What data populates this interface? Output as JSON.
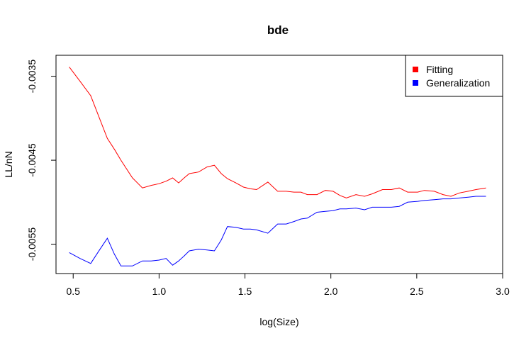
{
  "chart_data": {
    "type": "line",
    "title": "bde",
    "xlabel": "log(Size)",
    "ylabel": "LL/nN",
    "xlim": [
      0.4,
      3.0
    ],
    "ylim": [
      -0.00585,
      -0.00325
    ],
    "x_ticks": [
      {
        "value": 0.5,
        "label": "0.5"
      },
      {
        "value": 1.0,
        "label": "1.0"
      },
      {
        "value": 1.5,
        "label": "1.5"
      },
      {
        "value": 2.0,
        "label": "2.0"
      },
      {
        "value": 2.5,
        "label": "2.5"
      },
      {
        "value": 3.0,
        "label": "3.0"
      }
    ],
    "y_ticks": [
      {
        "value": -0.0035,
        "label": "-0.0035"
      },
      {
        "value": -0.0045,
        "label": "-0.0045"
      },
      {
        "value": -0.0055,
        "label": "-0.0055"
      }
    ],
    "legend_position": "top-right",
    "series": [
      {
        "name": "Fitting",
        "color": "#ff0000",
        "points": [
          [
            0.477,
            -0.00339
          ],
          [
            0.54,
            -0.00356
          ],
          [
            0.602,
            -0.00373
          ],
          [
            0.653,
            -0.004
          ],
          [
            0.699,
            -0.00424
          ],
          [
            0.74,
            -0.00437
          ],
          [
            0.778,
            -0.0045
          ],
          [
            0.845,
            -0.00471
          ],
          [
            0.903,
            -0.00483
          ],
          [
            0.954,
            -0.0048
          ],
          [
            1.0,
            -0.00478
          ],
          [
            1.041,
            -0.00475
          ],
          [
            1.079,
            -0.00471
          ],
          [
            1.114,
            -0.00477
          ],
          [
            1.146,
            -0.00471
          ],
          [
            1.176,
            -0.00466
          ],
          [
            1.23,
            -0.00464
          ],
          [
            1.279,
            -0.00458
          ],
          [
            1.322,
            -0.00456
          ],
          [
            1.362,
            -0.00466
          ],
          [
            1.398,
            -0.00472
          ],
          [
            1.447,
            -0.00477
          ],
          [
            1.491,
            -0.00482
          ],
          [
            1.531,
            -0.00484
          ],
          [
            1.568,
            -0.00485
          ],
          [
            1.633,
            -0.00476
          ],
          [
            1.69,
            -0.00487
          ],
          [
            1.74,
            -0.00487
          ],
          [
            1.785,
            -0.00488
          ],
          [
            1.826,
            -0.00488
          ],
          [
            1.863,
            -0.00491
          ],
          [
            1.919,
            -0.00491
          ],
          [
            1.968,
            -0.00486
          ],
          [
            2.013,
            -0.00487
          ],
          [
            2.053,
            -0.00492
          ],
          [
            2.09,
            -0.00495
          ],
          [
            2.146,
            -0.00491
          ],
          [
            2.196,
            -0.00493
          ],
          [
            2.241,
            -0.0049
          ],
          [
            2.301,
            -0.00485
          ],
          [
            2.352,
            -0.00485
          ],
          [
            2.398,
            -0.00483
          ],
          [
            2.447,
            -0.00488
          ],
          [
            2.505,
            -0.00488
          ],
          [
            2.544,
            -0.00486
          ],
          [
            2.602,
            -0.00487
          ],
          [
            2.653,
            -0.00491
          ],
          [
            2.699,
            -0.00493
          ],
          [
            2.748,
            -0.00489
          ],
          [
            2.799,
            -0.00487
          ],
          [
            2.845,
            -0.00485
          ],
          [
            2.903,
            -0.00483
          ]
        ]
      },
      {
        "name": "Generalization",
        "color": "#0000ff",
        "points": [
          [
            0.477,
            -0.0056
          ],
          [
            0.54,
            -0.00567
          ],
          [
            0.602,
            -0.00573
          ],
          [
            0.653,
            -0.00557
          ],
          [
            0.699,
            -0.00543
          ],
          [
            0.74,
            -0.00562
          ],
          [
            0.778,
            -0.00576
          ],
          [
            0.845,
            -0.00576
          ],
          [
            0.903,
            -0.0057
          ],
          [
            0.954,
            -0.0057
          ],
          [
            1.0,
            -0.00569
          ],
          [
            1.041,
            -0.00567
          ],
          [
            1.079,
            -0.00575
          ],
          [
            1.114,
            -0.0057
          ],
          [
            1.146,
            -0.00564
          ],
          [
            1.176,
            -0.00558
          ],
          [
            1.23,
            -0.00556
          ],
          [
            1.279,
            -0.00557
          ],
          [
            1.322,
            -0.00558
          ],
          [
            1.362,
            -0.00545
          ],
          [
            1.398,
            -0.00529
          ],
          [
            1.447,
            -0.0053
          ],
          [
            1.491,
            -0.00532
          ],
          [
            1.531,
            -0.00532
          ],
          [
            1.568,
            -0.00533
          ],
          [
            1.633,
            -0.00537
          ],
          [
            1.69,
            -0.00526
          ],
          [
            1.74,
            -0.00526
          ],
          [
            1.785,
            -0.00523
          ],
          [
            1.826,
            -0.0052
          ],
          [
            1.863,
            -0.00519
          ],
          [
            1.919,
            -0.00512
          ],
          [
            1.968,
            -0.00511
          ],
          [
            2.013,
            -0.0051
          ],
          [
            2.053,
            -0.00508
          ],
          [
            2.09,
            -0.00508
          ],
          [
            2.146,
            -0.00507
          ],
          [
            2.196,
            -0.00509
          ],
          [
            2.241,
            -0.00506
          ],
          [
            2.301,
            -0.00506
          ],
          [
            2.352,
            -0.00506
          ],
          [
            2.398,
            -0.00505
          ],
          [
            2.447,
            -0.005
          ],
          [
            2.505,
            -0.00499
          ],
          [
            2.544,
            -0.00498
          ],
          [
            2.602,
            -0.00497
          ],
          [
            2.653,
            -0.00496
          ],
          [
            2.699,
            -0.00496
          ],
          [
            2.748,
            -0.00495
          ],
          [
            2.799,
            -0.00494
          ],
          [
            2.845,
            -0.00493
          ],
          [
            2.903,
            -0.00493
          ]
        ]
      }
    ]
  }
}
